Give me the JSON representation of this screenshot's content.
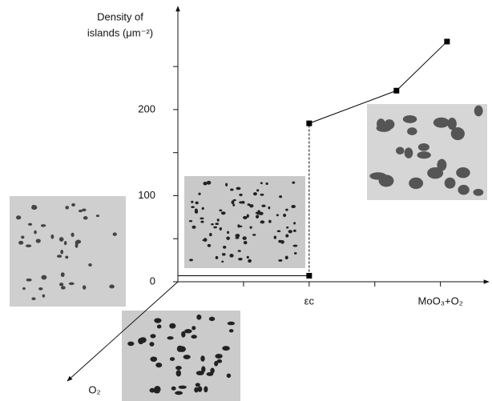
{
  "chart_data": {
    "type": "line",
    "y_label": [
      "Density of",
      "islands (μm⁻²)"
    ],
    "z_label": "O₂",
    "x": [
      0,
      2,
      2,
      3.33,
      4.1
    ],
    "series": [
      {
        "color": "#000000",
        "values": [
          7,
          7,
          184,
          222,
          279
        ]
      }
    ],
    "xlim": [
      0,
      4.7
    ],
    "xticks": [
      1,
      {
        "value": 2,
        "label": "εc"
      },
      3,
      {
        "value": 4,
        "label": "MoO₃+O₂"
      }
    ],
    "ylim": [
      0,
      318
    ],
    "yticks": [
      0,
      100,
      200
    ],
    "yminor": [
      50,
      150,
      250
    ]
  }
}
